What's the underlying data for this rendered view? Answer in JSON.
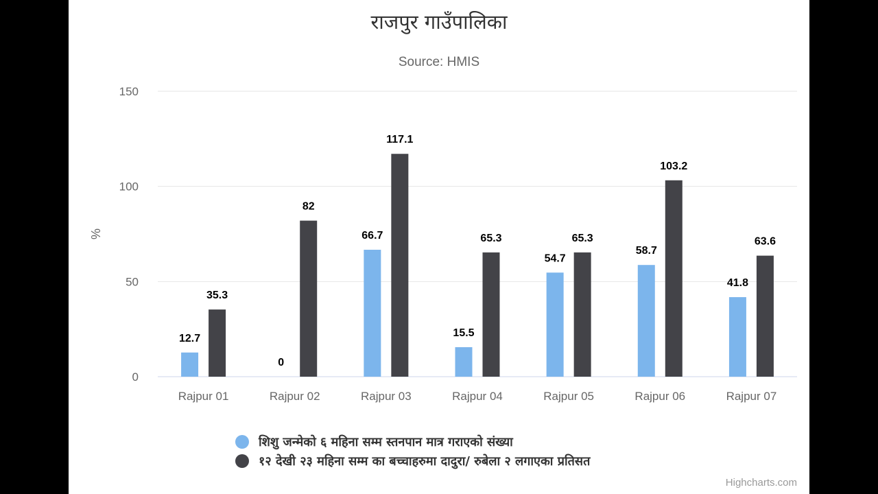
{
  "chart_data": {
    "type": "bar",
    "title": "राजपुर गाउँपालिका",
    "subtitle": "Source: HMIS",
    "ylabel": "%",
    "xlabel": "",
    "ylim": [
      0,
      150
    ],
    "yticks": [
      0,
      50,
      100,
      150
    ],
    "grid": true,
    "legend_position": "bottom",
    "categories": [
      "Rajpur 01",
      "Rajpur 02",
      "Rajpur 03",
      "Rajpur 04",
      "Rajpur 05",
      "Rajpur 06",
      "Rajpur 07"
    ],
    "series": [
      {
        "name": "शिशु जन्मेको ६ महिना सम्म स्तनपान मात्र गराएको संख्या",
        "color": "#7cb5ec",
        "values": [
          12.7,
          0,
          66.7,
          15.5,
          54.7,
          58.7,
          41.8
        ]
      },
      {
        "name": "१२ देखी २३ महिना सम्म का बच्चाहरुमा दादुरा/ रुबेला २ लगाएका प्रतिसत",
        "color": "#434348",
        "values": [
          35.3,
          82,
          117.1,
          65.3,
          65.3,
          103.2,
          63.6
        ]
      }
    ]
  },
  "credits": "Highcharts.com"
}
